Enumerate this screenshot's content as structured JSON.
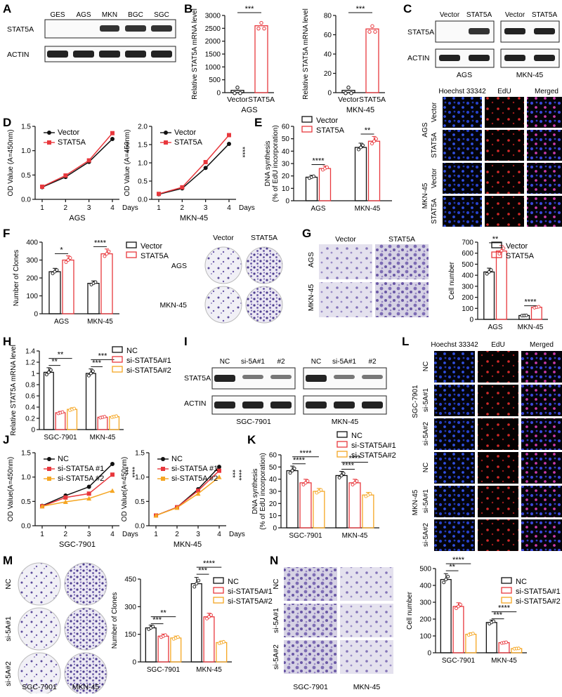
{
  "colors": {
    "black": "#111111",
    "red": "#e8383d",
    "orange": "#f5a623",
    "pink": "#ff6666"
  },
  "panels": {
    "A": {
      "label": "A",
      "lanes": [
        "GES",
        "AGS",
        "MKN",
        "BGC",
        "SGC"
      ],
      "rows": [
        "STAT5A",
        "ACTIN"
      ]
    },
    "B": {
      "label": "B",
      "left": {
        "ylabel": "Relative STAT5A mRNA level",
        "cell": "AGS",
        "groups": [
          "Vector",
          "STAT5A"
        ],
        "values": [
          1,
          2600
        ],
        "sig": "***"
      },
      "right": {
        "ylabel": "Relative STAT5A mRNA level",
        "cell": "MKN-45",
        "groups": [
          "Vector",
          "STAT5A"
        ],
        "values": [
          1,
          66
        ],
        "sig": "***"
      }
    },
    "C": {
      "label": "C",
      "groups": [
        "Vector",
        "STAT5A",
        "Vector",
        "STAT5A"
      ],
      "rows": [
        "STAT5A",
        "ACTIN"
      ],
      "cells": [
        "AGS",
        "MKN-45"
      ],
      "if_cols": [
        "Hoechst 33342",
        "EdU",
        "Merged"
      ],
      "if_groups": [
        "AGS",
        "MKN-45"
      ],
      "if_rows": [
        "Vector",
        "STAT5A",
        "Vector",
        "STAT5A"
      ]
    },
    "D": {
      "label": "D",
      "ylabel": "OD Value (A=450nm)",
      "xunit": "Days",
      "sig": "****",
      "charts": [
        {
          "cell": "AGS",
          "series": [
            {
              "name": "Vector",
              "values": [
                0.25,
                0.46,
                0.77,
                1.24
              ]
            },
            {
              "name": "STAT5A",
              "values": [
                0.26,
                0.49,
                0.8,
                1.36
              ]
            }
          ]
        },
        {
          "cell": "MKN-45",
          "series": [
            {
              "name": "Vector",
              "values": [
                0.14,
                0.3,
                0.86,
                1.52
              ]
            },
            {
              "name": "STAT5A",
              "values": [
                0.15,
                0.33,
                1.02,
                1.76
              ]
            }
          ]
        }
      ]
    },
    "E": {
      "label": "E",
      "ylabel": "DNA synthesis\n(% of EdU incorporation)",
      "categories": [
        "AGS",
        "MKN-45"
      ],
      "series": [
        {
          "name": "Vector",
          "values": [
            19,
            43
          ]
        },
        {
          "name": "STAT5A",
          "values": [
            26,
            48
          ]
        }
      ],
      "sig": [
        "****",
        "**"
      ]
    },
    "F": {
      "label": "F",
      "ylabel": "Number of Clones",
      "categories": [
        "AGS",
        "MKN-45"
      ],
      "series": [
        {
          "name": "Vector",
          "values": [
            235,
            170
          ]
        },
        {
          "name": "STAT5A",
          "values": [
            300,
            335
          ]
        }
      ],
      "sig": [
        "*",
        "****"
      ],
      "img_cols": [
        "Vector",
        "STAT5A"
      ],
      "img_rows": [
        "AGS",
        "MKN-45"
      ]
    },
    "G": {
      "label": "G",
      "ylabel": "Cell number",
      "categories": [
        "AGS",
        "MKN-45"
      ],
      "series": [
        {
          "name": "Vector",
          "values": [
            430,
            35
          ]
        },
        {
          "name": "STAT5A",
          "values": [
            620,
            110
          ]
        }
      ],
      "sig": [
        "**",
        "****"
      ],
      "img_cols": [
        "Vector",
        "STAT5A"
      ],
      "img_rows": [
        "AGS",
        "MKN-45"
      ]
    },
    "H": {
      "label": "H",
      "ylabel": "Relative STAT5A mRNA level",
      "categories": [
        "SGC-7901",
        "MKN-45"
      ],
      "series": [
        {
          "name": "NC",
          "values": [
            1.02,
            1.0
          ]
        },
        {
          "name": "si-STAT5A#1",
          "values": [
            0.3,
            0.22
          ]
        },
        {
          "name": "si-STAT5A#2",
          "values": [
            0.36,
            0.23
          ]
        }
      ],
      "sig": [
        "**",
        "**",
        "***",
        "***"
      ]
    },
    "I": {
      "label": "I",
      "lanes": [
        "NC",
        "si-5A#1",
        "#2",
        "NC",
        "si-5A#1",
        "#2"
      ],
      "rows": [
        "STAT5A",
        "ACTIN"
      ],
      "cells": [
        "SGC-7901",
        "MKN-45"
      ]
    },
    "J": {
      "label": "J",
      "ylabel": "OD Value(A=450nm)",
      "xunit": "Days",
      "sig": [
        "***",
        "****"
      ],
      "charts": [
        {
          "cell": "SGC-7901",
          "series": [
            {
              "name": "NC",
              "values": [
                0.41,
                0.62,
                0.8,
                1.27
              ]
            },
            {
              "name": "si-STAT5A #1",
              "values": [
                0.4,
                0.58,
                0.66,
                1.05
              ]
            },
            {
              "name": "si-STAT5A #2",
              "values": [
                0.4,
                0.49,
                0.56,
                0.72
              ]
            }
          ]
        },
        {
          "cell": "MKN-45",
          "series": [
            {
              "name": "NC",
              "values": [
                0.21,
                0.38,
                0.75,
                1.21
              ]
            },
            {
              "name": "si-STAT5A #1",
              "values": [
                0.21,
                0.38,
                0.72,
                1.13
              ]
            },
            {
              "name": "si-STAT5A #2",
              "values": [
                0.21,
                0.37,
                0.66,
                1.0
              ]
            }
          ]
        }
      ]
    },
    "K": {
      "label": "K",
      "ylabel": "DNA synthesis\n(% of EdU incorporation)",
      "categories": [
        "SGC-7901",
        "MKN-45"
      ],
      "series": [
        {
          "name": "NC",
          "values": [
            47,
            43
          ]
        },
        {
          "name": "si-STAT5A#1",
          "values": [
            37,
            37
          ]
        },
        {
          "name": "si-STAT5A#2",
          "values": [
            30,
            27
          ]
        }
      ],
      "sig": [
        "****",
        "****",
        "****",
        "****"
      ]
    },
    "L": {
      "label": "L",
      "if_cols": [
        "Hoechst 33342",
        "EdU",
        "Merged"
      ],
      "if_groups": [
        "SGC-7901",
        "MKN-45"
      ],
      "if_rows": [
        "NC",
        "si-5A#1",
        "si-5A#2",
        "NC",
        "si-5A#1",
        "si-5A#2"
      ]
    },
    "M": {
      "label": "M",
      "ylabel": "Number of Clones",
      "categories": [
        "SGC-7901",
        "MKN-45"
      ],
      "series": [
        {
          "name": "NC",
          "values": [
            185,
            425
          ]
        },
        {
          "name": "si-STAT5A#1",
          "values": [
            140,
            245
          ]
        },
        {
          "name": "si-STAT5A#2",
          "values": [
            130,
            105
          ]
        }
      ],
      "sig": [
        "***",
        "**",
        "***",
        "****"
      ],
      "img_cols": [
        "SGC-7901",
        "MKN-45"
      ],
      "img_rows": [
        "NC",
        "si-5A#1",
        "si-5A#2"
      ]
    },
    "N": {
      "label": "N",
      "ylabel": "Cell number",
      "categories": [
        "SGC-7901",
        "MKN-45"
      ],
      "series": [
        {
          "name": "NC",
          "values": [
            435,
            180
          ]
        },
        {
          "name": "si-STAT5A#1",
          "values": [
            275,
            60
          ]
        },
        {
          "name": "si-STAT5A#2",
          "values": [
            110,
            25
          ]
        }
      ],
      "sig": [
        "**",
        "****",
        "***",
        "****"
      ],
      "img_cols": [
        "SGC-7901",
        "MKN-45"
      ],
      "img_rows": [
        "NC",
        "si-5A#1",
        "si-5A#2"
      ]
    }
  }
}
